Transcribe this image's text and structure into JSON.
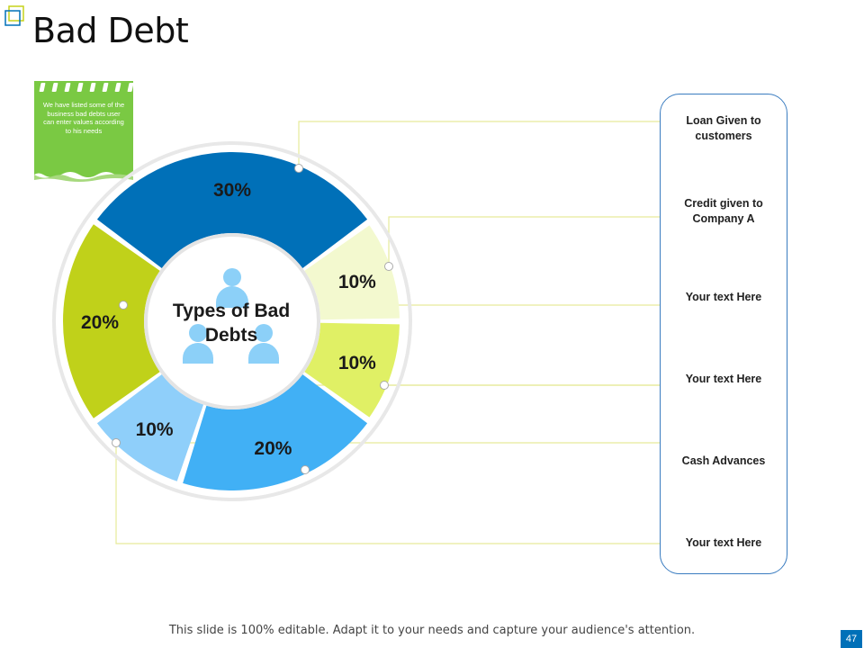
{
  "header": {
    "title": "Bad Debt"
  },
  "note": {
    "text": "We have listed some of the business bad debts user can enter values according to his needs"
  },
  "chart_data": {
    "type": "pie",
    "center_label": "Types of Bad Debts",
    "slices": [
      {
        "label": "Loan Given to customers",
        "value": 30,
        "display": "30%",
        "color": "#0070b8"
      },
      {
        "label": "Credit given to Company A",
        "value": 10,
        "display": "10%",
        "color": "#f3f9cf"
      },
      {
        "label": "Your text Here",
        "value": 10,
        "display": "10%",
        "color": "#e0f065"
      },
      {
        "label": "Cash Advances",
        "value": 20,
        "display": "20%",
        "color": "#41b0f5"
      },
      {
        "label": "Your text Here",
        "value": 10,
        "display": "10%",
        "color": "#8fcffa"
      },
      {
        "label": "Your text Here",
        "value": 20,
        "display": "20%",
        "color": "#c0d11a"
      }
    ]
  },
  "legend": {
    "items": [
      "Loan Given to customers",
      "Credit given to Company A",
      "Your text Here",
      "Your text Here",
      "Cash Advances",
      "Your text Here"
    ]
  },
  "footer": {
    "text": "This slide is 100% editable. Adapt it to your needs and capture your audience's attention."
  },
  "page": {
    "number": "47"
  },
  "colors": {
    "accent": "#0070b8",
    "note_green": "#7ac943",
    "leader_line": "#e6eb9a"
  }
}
